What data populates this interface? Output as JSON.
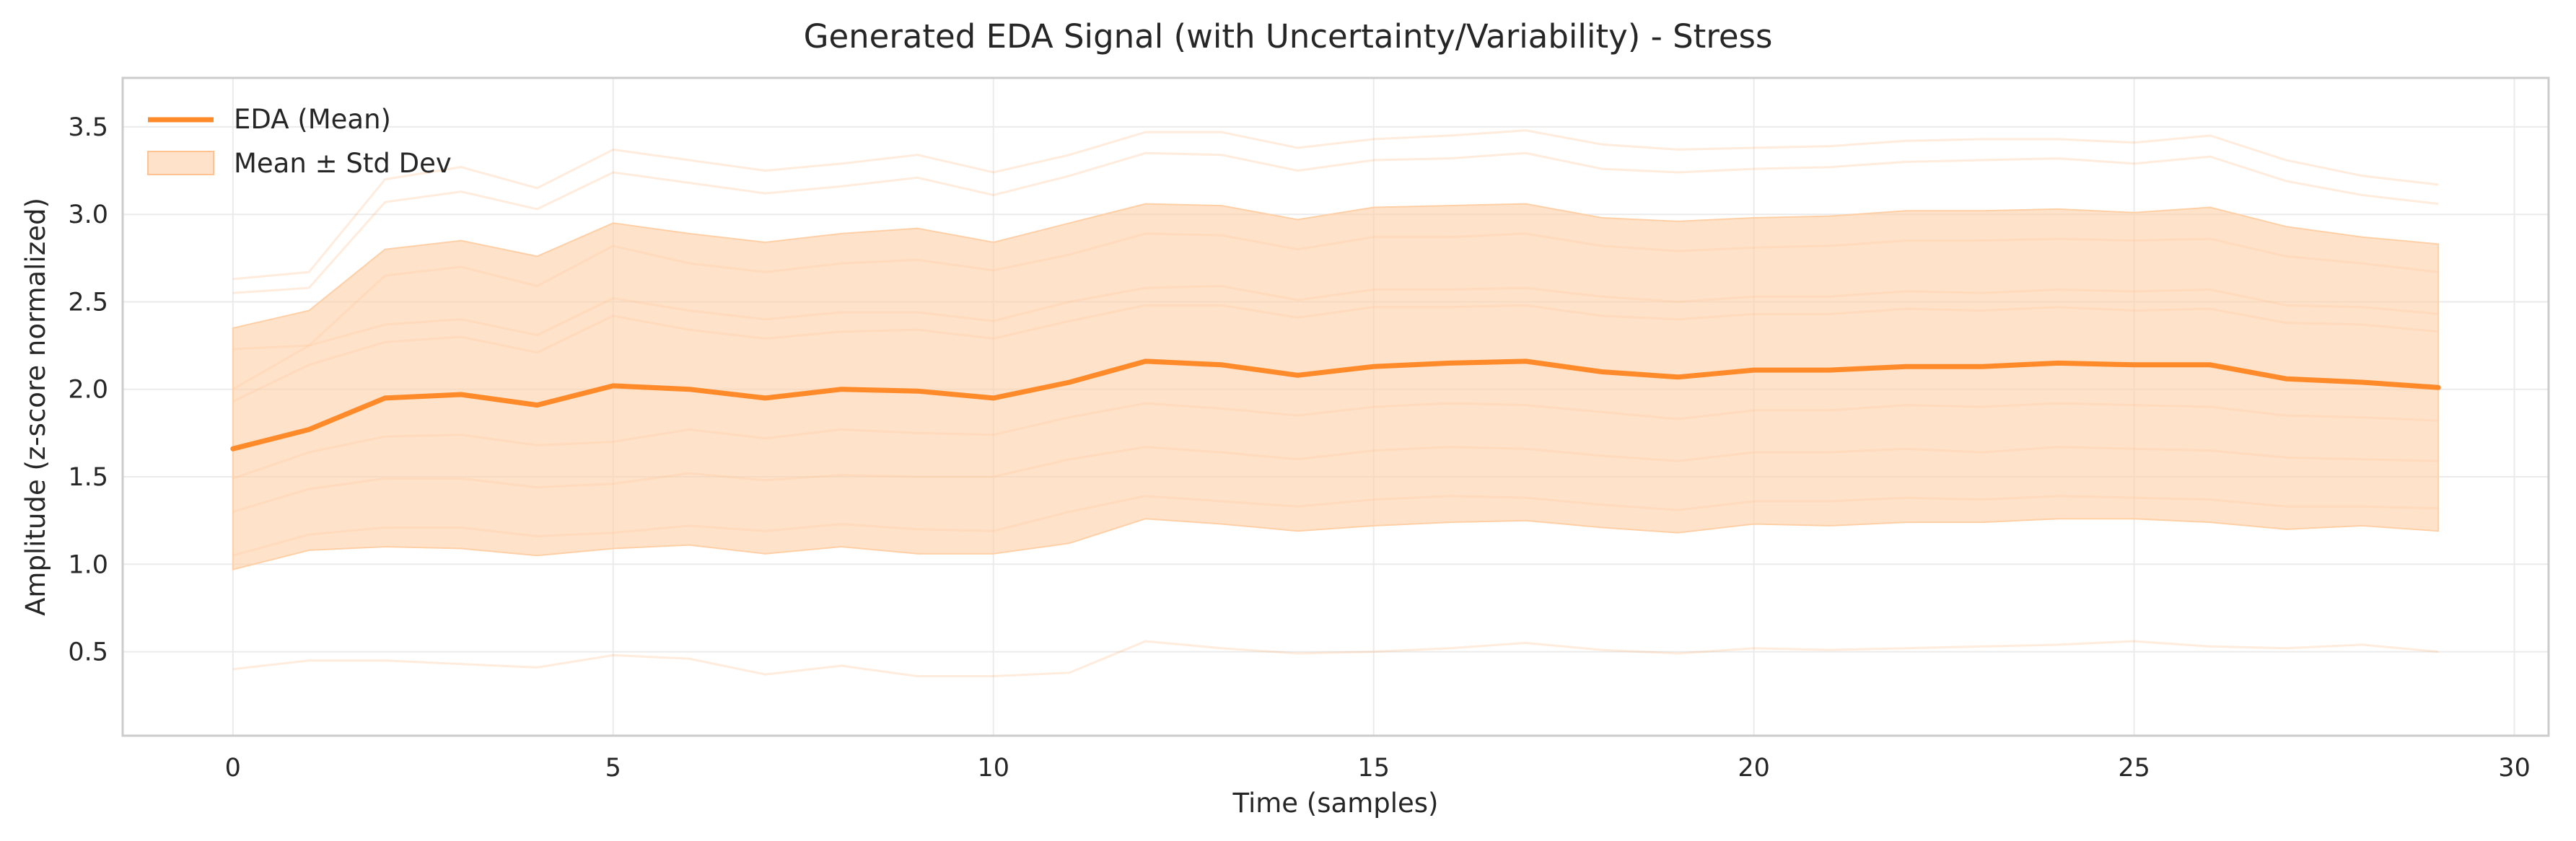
{
  "chart_data": {
    "type": "line",
    "title": "Generated EDA Signal (with Uncertainty/Variability) - Stress",
    "xlabel": "Time (samples)",
    "ylabel": "Amplitude (z-score normalized)",
    "xlim": [
      -1.45,
      30.45
    ],
    "ylim": [
      0.02,
      3.78
    ],
    "xticks": [
      0,
      5,
      10,
      15,
      20,
      25,
      30
    ],
    "yticks": [
      0.5,
      1.0,
      1.5,
      2.0,
      2.5,
      3.0,
      3.5
    ],
    "grid": true,
    "legend_position": "top-left",
    "x": [
      0,
      1,
      2,
      3,
      4,
      5,
      6,
      7,
      8,
      9,
      10,
      11,
      12,
      13,
      14,
      15,
      16,
      17,
      18,
      19,
      20,
      21,
      22,
      23,
      24,
      25,
      26,
      27,
      28,
      29
    ],
    "series": [
      {
        "name": "EDA (Mean)",
        "role": "mean",
        "color": "#ff8a2a",
        "values": [
          1.66,
          1.77,
          1.95,
          1.97,
          1.91,
          2.02,
          2.0,
          1.95,
          2.0,
          1.99,
          1.95,
          2.04,
          2.16,
          2.14,
          2.08,
          2.13,
          2.15,
          2.16,
          2.1,
          2.07,
          2.11,
          2.11,
          2.13,
          2.13,
          2.15,
          2.14,
          2.14,
          2.06,
          2.04,
          2.01
        ]
      },
      {
        "name": "Mean ± Std Dev",
        "role": "band",
        "color": "#ffcfa6",
        "upper": [
          2.35,
          2.45,
          2.8,
          2.85,
          2.76,
          2.95,
          2.89,
          2.84,
          2.89,
          2.92,
          2.84,
          2.95,
          3.06,
          3.05,
          2.97,
          3.04,
          3.05,
          3.06,
          2.98,
          2.96,
          2.98,
          2.99,
          3.02,
          3.02,
          3.03,
          3.01,
          3.04,
          2.93,
          2.87,
          2.83
        ],
        "lower": [
          0.97,
          1.08,
          1.1,
          1.09,
          1.05,
          1.09,
          1.11,
          1.06,
          1.1,
          1.06,
          1.06,
          1.12,
          1.26,
          1.23,
          1.19,
          1.22,
          1.24,
          1.25,
          1.21,
          1.18,
          1.23,
          1.22,
          1.24,
          1.24,
          1.26,
          1.26,
          1.24,
          1.2,
          1.22,
          1.19
        ]
      }
    ],
    "sample_traces": [
      [
        2.63,
        2.67,
        3.2,
        3.27,
        3.15,
        3.37,
        3.31,
        3.25,
        3.29,
        3.34,
        3.24,
        3.34,
        3.47,
        3.47,
        3.38,
        3.43,
        3.45,
        3.48,
        3.4,
        3.37,
        3.38,
        3.39,
        3.42,
        3.43,
        3.43,
        3.41,
        3.45,
        3.31,
        3.22,
        3.17
      ],
      [
        2.55,
        2.58,
        3.07,
        3.13,
        3.03,
        3.24,
        3.18,
        3.12,
        3.16,
        3.21,
        3.11,
        3.22,
        3.35,
        3.34,
        3.25,
        3.31,
        3.32,
        3.35,
        3.26,
        3.24,
        3.26,
        3.27,
        3.3,
        3.31,
        3.32,
        3.29,
        3.33,
        3.19,
        3.11,
        3.06
      ],
      [
        2.23,
        2.25,
        2.65,
        2.7,
        2.59,
        2.82,
        2.72,
        2.67,
        2.72,
        2.74,
        2.68,
        2.77,
        2.89,
        2.88,
        2.8,
        2.87,
        2.87,
        2.89,
        2.82,
        2.79,
        2.81,
        2.82,
        2.85,
        2.85,
        2.86,
        2.85,
        2.86,
        2.76,
        2.72,
        2.67
      ],
      [
        2.0,
        2.25,
        2.37,
        2.4,
        2.31,
        2.52,
        2.45,
        2.4,
        2.44,
        2.44,
        2.39,
        2.5,
        2.58,
        2.59,
        2.51,
        2.57,
        2.57,
        2.58,
        2.53,
        2.5,
        2.53,
        2.53,
        2.56,
        2.55,
        2.57,
        2.56,
        2.57,
        2.48,
        2.47,
        2.43
      ],
      [
        1.93,
        2.14,
        2.27,
        2.3,
        2.21,
        2.42,
        2.34,
        2.29,
        2.33,
        2.34,
        2.29,
        2.39,
        2.48,
        2.48,
        2.41,
        2.47,
        2.47,
        2.48,
        2.42,
        2.4,
        2.43,
        2.43,
        2.46,
        2.45,
        2.47,
        2.45,
        2.46,
        2.38,
        2.37,
        2.33
      ],
      [
        1.49,
        1.64,
        1.73,
        1.74,
        1.68,
        1.7,
        1.77,
        1.72,
        1.77,
        1.75,
        1.74,
        1.84,
        1.92,
        1.89,
        1.85,
        1.9,
        1.92,
        1.91,
        1.87,
        1.83,
        1.88,
        1.88,
        1.91,
        1.9,
        1.92,
        1.91,
        1.9,
        1.85,
        1.84,
        1.82
      ],
      [
        1.3,
        1.43,
        1.49,
        1.49,
        1.44,
        1.46,
        1.52,
        1.48,
        1.51,
        1.5,
        1.5,
        1.6,
        1.67,
        1.64,
        1.6,
        1.65,
        1.67,
        1.66,
        1.62,
        1.59,
        1.64,
        1.64,
        1.66,
        1.64,
        1.67,
        1.66,
        1.65,
        1.61,
        1.6,
        1.59
      ],
      [
        1.05,
        1.17,
        1.21,
        1.21,
        1.16,
        1.18,
        1.22,
        1.19,
        1.23,
        1.2,
        1.19,
        1.3,
        1.39,
        1.36,
        1.33,
        1.37,
        1.39,
        1.38,
        1.34,
        1.31,
        1.36,
        1.36,
        1.38,
        1.37,
        1.39,
        1.38,
        1.37,
        1.33,
        1.33,
        1.32
      ],
      [
        0.4,
        0.45,
        0.45,
        0.43,
        0.41,
        0.48,
        0.46,
        0.37,
        0.42,
        0.36,
        0.36,
        0.38,
        0.56,
        0.52,
        0.49,
        0.5,
        0.52,
        0.55,
        0.51,
        0.49,
        0.52,
        0.51,
        0.52,
        0.53,
        0.54,
        0.56,
        0.53,
        0.52,
        0.54,
        0.5
      ]
    ]
  }
}
